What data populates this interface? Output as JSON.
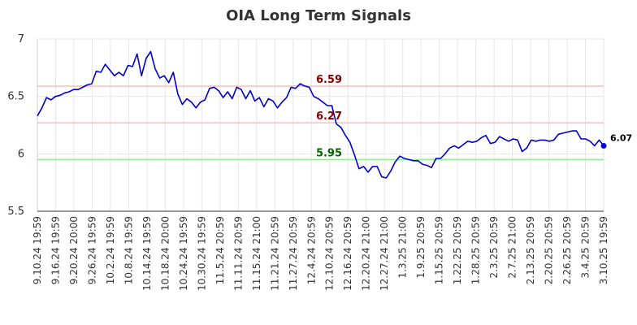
{
  "chart_data": {
    "type": "line",
    "title": "OIA Long Term Signals",
    "xlabel": "",
    "ylabel": "",
    "ylim": [
      5.5,
      7
    ],
    "yticks": [
      "5.5",
      "6",
      "6.5",
      "7"
    ],
    "grid": true,
    "x_tick_labels": [
      "9.10.24 19:59",
      "9.16.24 19:59",
      "9.20.24 20:00",
      "9.26.24 19:59",
      "10.2.24 19:59",
      "10.8.24 19:59",
      "10.14.24 19:59",
      "10.18.24 20:00",
      "10.24.24 19:59",
      "10.30.24 19:59",
      "11.5.24 20:59",
      "11.11.24 20:59",
      "11.15.24 21:00",
      "11.21.24 20:59",
      "11.27.24 20:59",
      "12.4.24 20:59",
      "12.10.24 20:59",
      "12.16.24 20:59",
      "12.20.24 21:00",
      "12.27.24 21:00",
      "1.3.25 21:00",
      "1.9.25 20:59",
      "1.15.25 20:59",
      "1.22.25 20:59",
      "1.28.25 20:59",
      "2.3.25 20:59",
      "2.7.25 21:00",
      "2.13.25 20:59",
      "2.20.25 20:59",
      "2.26.25 20:59",
      "3.4.25 20:59",
      "3.10.25 19:59"
    ],
    "series": [
      {
        "color": "#0000cc",
        "values": [
          6.33,
          6.4,
          6.49,
          6.47,
          6.5,
          6.51,
          6.53,
          6.54,
          6.56,
          6.56,
          6.58,
          6.6,
          6.61,
          6.72,
          6.71,
          6.78,
          6.73,
          6.68,
          6.71,
          6.68,
          6.77,
          6.76,
          6.87,
          6.68,
          6.83,
          6.89,
          6.74,
          6.66,
          6.68,
          6.62,
          6.71,
          6.52,
          6.43,
          6.48,
          6.45,
          6.4,
          6.45,
          6.47,
          6.57,
          6.58,
          6.55,
          6.49,
          6.54,
          6.48,
          6.58,
          6.56,
          6.48,
          6.55,
          6.46,
          6.49,
          6.41,
          6.48,
          6.46,
          6.4,
          6.45,
          6.49,
          6.58,
          6.57,
          6.61,
          6.59,
          6.58,
          6.5,
          6.48,
          6.45,
          6.42,
          6.42,
          6.26,
          6.23,
          6.16,
          6.1,
          5.99,
          5.87,
          5.89,
          5.84,
          5.89,
          5.89,
          5.8,
          5.79,
          5.85,
          5.93,
          5.98,
          5.96,
          5.95,
          5.94,
          5.94,
          5.91,
          5.9,
          5.88,
          5.96,
          5.96,
          6.0,
          6.05,
          6.07,
          6.05,
          6.08,
          6.11,
          6.1,
          6.11,
          6.14,
          6.16,
          6.09,
          6.1,
          6.15,
          6.13,
          6.11,
          6.13,
          6.12,
          6.02,
          6.05,
          6.12,
          6.11,
          6.12,
          6.12,
          6.11,
          6.12,
          6.17,
          6.18,
          6.19,
          6.2,
          6.2,
          6.13,
          6.13,
          6.11,
          6.07,
          6.12,
          6.07
        ]
      }
    ],
    "hlines": [
      {
        "value": 6.59,
        "label": "6.59",
        "line_color": "#ffbbbb",
        "text_color": "#880000"
      },
      {
        "value": 6.27,
        "label": "6.27",
        "line_color": "#ffbbbb",
        "text_color": "#880000"
      },
      {
        "value": 5.95,
        "label": "5.95",
        "line_color": "#90ee90",
        "text_color": "#006600"
      }
    ],
    "last_value_label": "6.07"
  }
}
